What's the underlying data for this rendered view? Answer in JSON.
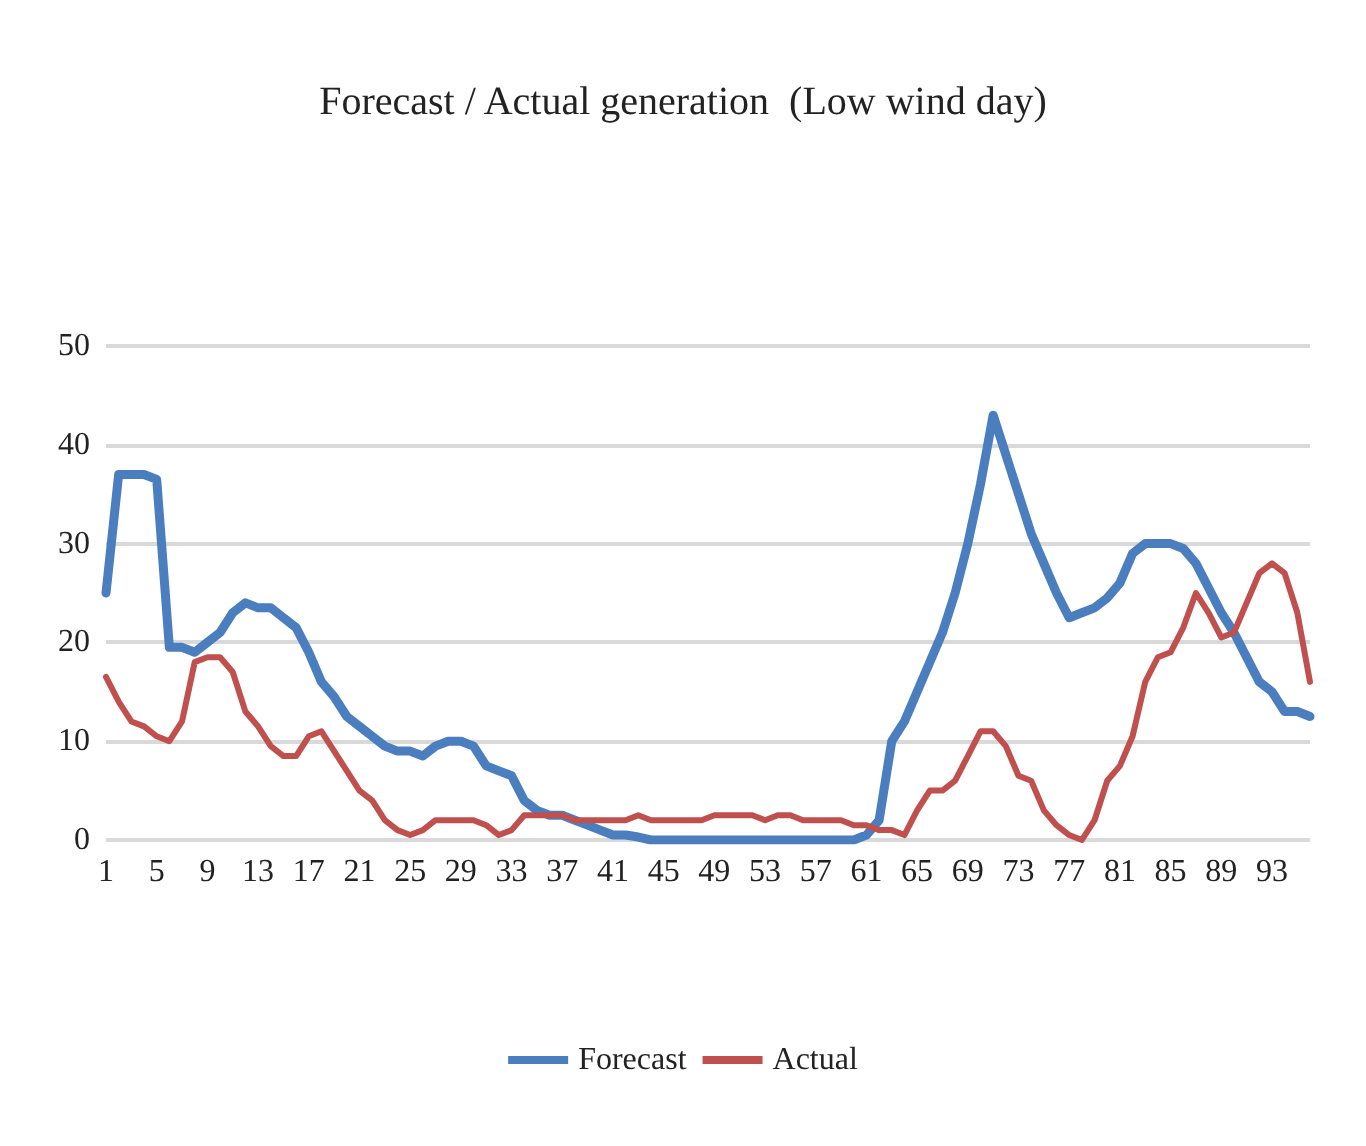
{
  "chart_data": {
    "type": "line",
    "title": "Forecast / Actual generation  (Low wind day)",
    "categories": [
      "1",
      null,
      null,
      null,
      "5",
      null,
      null,
      null,
      "9",
      null,
      null,
      null,
      "13",
      null,
      null,
      null,
      "17",
      null,
      null,
      null,
      "21",
      null,
      null,
      null,
      "25",
      null,
      null,
      null,
      "29",
      null,
      null,
      null,
      "33",
      null,
      null,
      null,
      "37",
      null,
      null,
      null,
      "41",
      null,
      null,
      null,
      "45",
      null,
      null,
      null,
      "49",
      null,
      null,
      null,
      "53",
      null,
      null,
      null,
      "57",
      null,
      null,
      null,
      "61",
      null,
      null,
      null,
      "65",
      null,
      null,
      null,
      "69",
      null,
      null,
      null,
      "73",
      null,
      null,
      null,
      "77",
      null,
      null,
      null,
      "81",
      null,
      null,
      null,
      "85",
      null,
      null,
      null,
      "89",
      null,
      null,
      null,
      "93",
      null,
      null,
      null
    ],
    "series": [
      {
        "name": "Forecast",
        "color": "#4a7ebf",
        "values": [
          25,
          37,
          37,
          37,
          36.5,
          19.5,
          19.5,
          19,
          20,
          21,
          23,
          24,
          23.5,
          23.5,
          22.5,
          21.5,
          19,
          16,
          14.5,
          12.5,
          11.5,
          10.5,
          9.5,
          9,
          9,
          8.5,
          9.5,
          10,
          10,
          9.5,
          7.5,
          7,
          6.5,
          4,
          3,
          2.5,
          2.5,
          2,
          1.5,
          1,
          0.5,
          0.5,
          0.3,
          0,
          0,
          0,
          0,
          0,
          0,
          0,
          0,
          0,
          0,
          0,
          0,
          0,
          0,
          0,
          0,
          0,
          0.5,
          2,
          10,
          12,
          15,
          18,
          21,
          25,
          30,
          36,
          43,
          39,
          35,
          31,
          28,
          25,
          22.5,
          23,
          23.5,
          24.5,
          26,
          29,
          30,
          30,
          30,
          29.5,
          28,
          25.5,
          23,
          21,
          18.5,
          16,
          15,
          13,
          13,
          12.5
        ]
      },
      {
        "name": "Actual",
        "color": "#c0504d",
        "values": [
          16.5,
          14,
          12,
          11.5,
          10.5,
          10,
          12,
          18,
          18.5,
          18.5,
          17,
          13,
          11.5,
          9.5,
          8.5,
          8.5,
          10.5,
          11,
          9,
          7,
          5,
          4,
          2,
          1,
          0.5,
          1,
          2,
          2,
          2,
          2,
          1.5,
          0.5,
          1,
          2.5,
          2.5,
          2.5,
          2.5,
          2,
          2,
          2,
          2,
          2,
          2.5,
          2,
          2,
          2,
          2,
          2,
          2.5,
          2.5,
          2.5,
          2.5,
          2,
          2.5,
          2.5,
          2,
          2,
          2,
          2,
          1.5,
          1.5,
          1,
          1,
          0.5,
          3,
          5,
          5,
          6,
          8.5,
          11,
          11,
          9.5,
          6.5,
          6,
          3,
          1.5,
          0.5,
          0,
          2,
          6,
          7.5,
          10.5,
          16,
          18.5,
          19,
          21.5,
          25,
          23,
          20.5,
          21,
          24,
          27,
          28,
          27,
          23,
          16
        ]
      }
    ],
    "ylim": [
      0,
      50
    ],
    "yticks": [
      0,
      10,
      20,
      30,
      40,
      50
    ],
    "grid": "y",
    "legend": "bottom",
    "marker": "none",
    "line_style": "solid"
  }
}
